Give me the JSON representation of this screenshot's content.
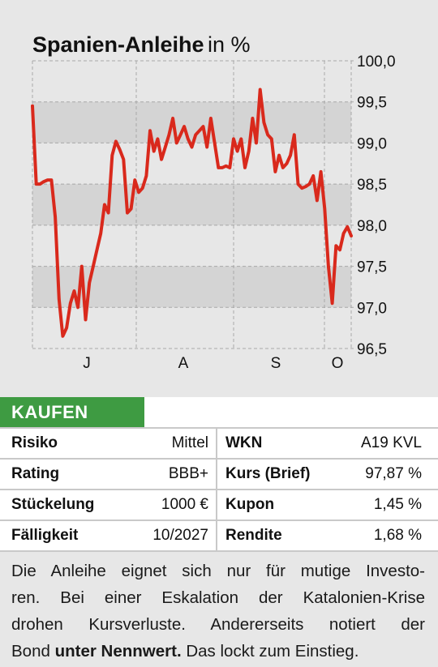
{
  "chart_data": {
    "type": "line",
    "title": "Spanien-Anleihe",
    "unit": "in %",
    "yticks": [
      "100,0",
      "99,5",
      "99,0",
      "98,5",
      "98,0",
      "97,5",
      "97,0",
      "96,5"
    ],
    "ytick_values": [
      100.0,
      99.5,
      99.0,
      98.5,
      98.0,
      97.5,
      97.0,
      96.5
    ],
    "ylim": [
      96.5,
      100.0
    ],
    "xticks": [
      "J",
      "A",
      "S",
      "O"
    ],
    "grid": true,
    "line_color": "#d9291c",
    "series": [
      {
        "values": [
          99.45,
          98.5,
          98.5,
          98.53,
          98.55,
          98.55,
          98.1,
          97.1,
          96.65,
          96.75,
          97.05,
          97.2,
          97.0,
          97.5,
          96.85,
          97.3,
          97.5,
          97.7,
          97.9,
          98.25,
          98.15,
          98.85,
          99.02,
          98.92,
          98.8,
          98.15,
          98.2,
          98.55,
          98.4,
          98.45,
          98.6,
          99.15,
          98.9,
          99.05,
          98.8,
          98.95,
          99.1,
          99.3,
          99.0,
          99.1,
          99.2,
          99.05,
          98.95,
          99.1,
          99.15,
          99.2,
          98.95,
          99.3,
          99.0,
          98.7,
          98.7,
          98.72,
          98.7,
          99.05,
          98.9,
          99.05,
          98.7,
          98.9,
          99.3,
          99.0,
          99.65,
          99.25,
          99.1,
          99.05,
          98.65,
          98.85,
          98.7,
          98.75,
          98.85,
          99.1,
          98.5,
          98.45,
          98.47,
          98.5,
          98.6,
          98.3,
          98.65,
          98.2,
          97.5,
          97.05,
          97.75,
          97.7,
          97.9,
          97.98,
          97.87
        ]
      }
    ]
  },
  "badge": {
    "label": "KAUFEN"
  },
  "table": {
    "rows": [
      {
        "label1": "Risiko",
        "value1": "Mittel",
        "label2": "WKN",
        "value2": "A19 KVL"
      },
      {
        "label1": "Rating",
        "value1": "BBB+",
        "label2": "Kurs (Brief)",
        "value2": "97,87 %"
      },
      {
        "label1": "Stückelung",
        "value1": "1000 €",
        "label2": "Kupon",
        "value2": "1,45 %"
      },
      {
        "label1": "Fälligkeit",
        "value1": "10/2027",
        "label2": "Rendite",
        "value2": "1,68 %"
      }
    ]
  },
  "description": {
    "line1": "Die Anleihe eignet sich nur für mutige Investo-",
    "line2": "ren. Bei einer Eskalation der Katalonien-Krise",
    "line3": "drohen Kursverluste. Andererseits notiert der",
    "line4_pre": "Bond",
    "line4_bold": "unter Nennwert.",
    "line4_post": "Das lockt zum Einstieg."
  }
}
